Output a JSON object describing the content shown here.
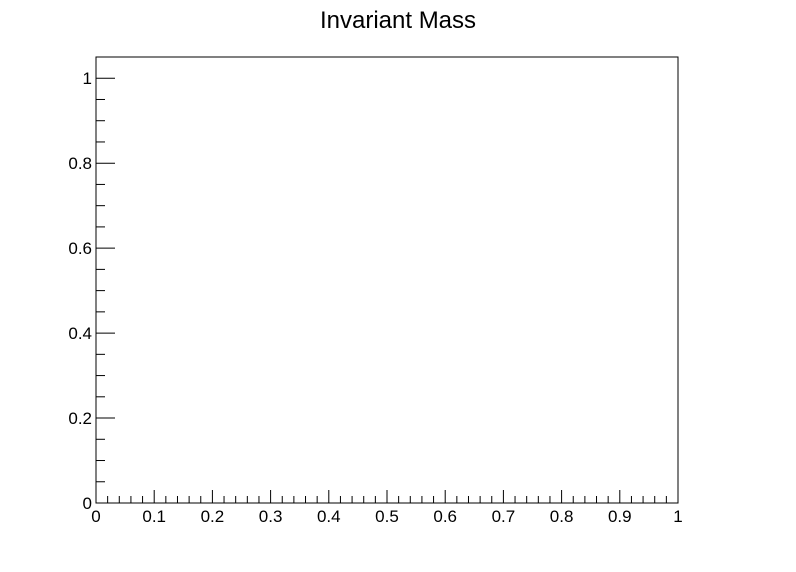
{
  "chart_data": {
    "type": "histogram",
    "title": "Invariant Mass",
    "xlim": [
      0,
      1
    ],
    "ylim": [
      0,
      1.05
    ],
    "x_ticks": [
      0,
      0.1,
      0.2,
      0.3,
      0.4,
      0.5,
      0.6,
      0.7,
      0.8,
      0.9,
      1
    ],
    "x_tick_labels": [
      "0",
      "0.1",
      "0.2",
      "0.3",
      "0.4",
      "0.5",
      "0.6",
      "0.7",
      "0.8",
      "0.9",
      "1"
    ],
    "x_minor_step": 0.02,
    "y_ticks": [
      0,
      0.2,
      0.4,
      0.6,
      0.8,
      1
    ],
    "y_tick_labels": [
      "0",
      "0.2",
      "0.4",
      "0.6",
      "0.8",
      "1"
    ],
    "y_minor_step": 0.05,
    "grid": false,
    "series": [],
    "colors": {
      "axis": "#000000",
      "background": "#ffffff"
    }
  }
}
